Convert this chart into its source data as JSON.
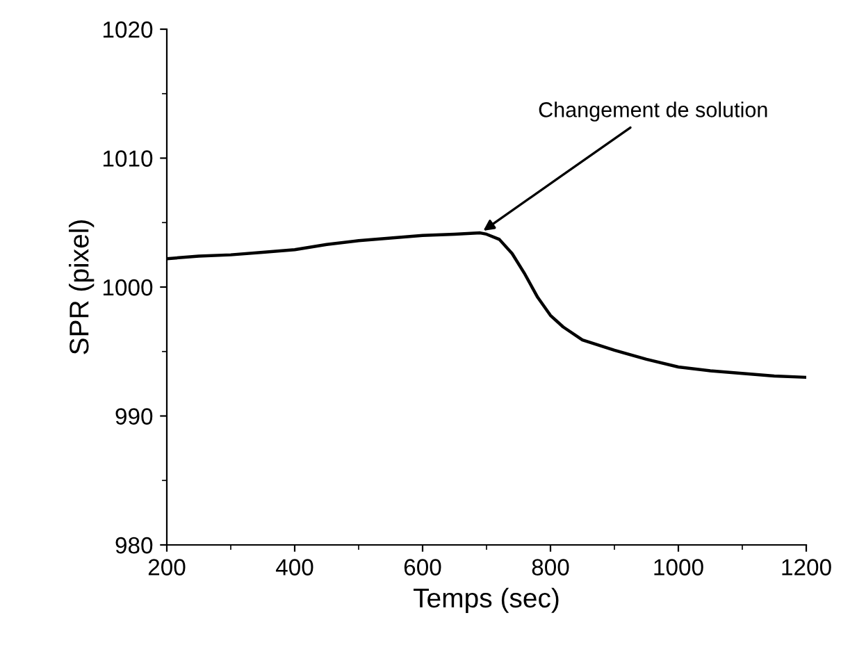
{
  "chart_data": {
    "type": "line",
    "xlabel": "Temps (sec)",
    "ylabel": "SPR (pixel)",
    "x": [
      200,
      250,
      300,
      350,
      400,
      450,
      500,
      550,
      600,
      650,
      690,
      700,
      720,
      740,
      760,
      780,
      800,
      820,
      850,
      900,
      950,
      1000,
      1050,
      1100,
      1150,
      1200
    ],
    "series": [
      {
        "color": "#000000",
        "values": [
          1002.2,
          1002.4,
          1002.5,
          1002.7,
          1002.9,
          1003.3,
          1003.6,
          1003.8,
          1004.0,
          1004.1,
          1004.2,
          1004.1,
          1003.7,
          1002.6,
          1001.0,
          999.2,
          997.8,
          996.9,
          995.9,
          995.1,
          994.4,
          993.8,
          993.5,
          993.3,
          993.1,
          993.0
        ]
      }
    ],
    "annotations": [
      {
        "text": "Changement de solution",
        "x": 690,
        "y": 1004.2
      }
    ],
    "xlim": [
      200,
      1200
    ],
    "ylim": [
      980,
      1020
    ],
    "xticks": [
      200,
      400,
      600,
      800,
      1000,
      1200
    ],
    "yticks": [
      980,
      990,
      1000,
      1010,
      1020
    ],
    "grid": false,
    "legend": false,
    "line_style": "solid",
    "marker": "none"
  }
}
